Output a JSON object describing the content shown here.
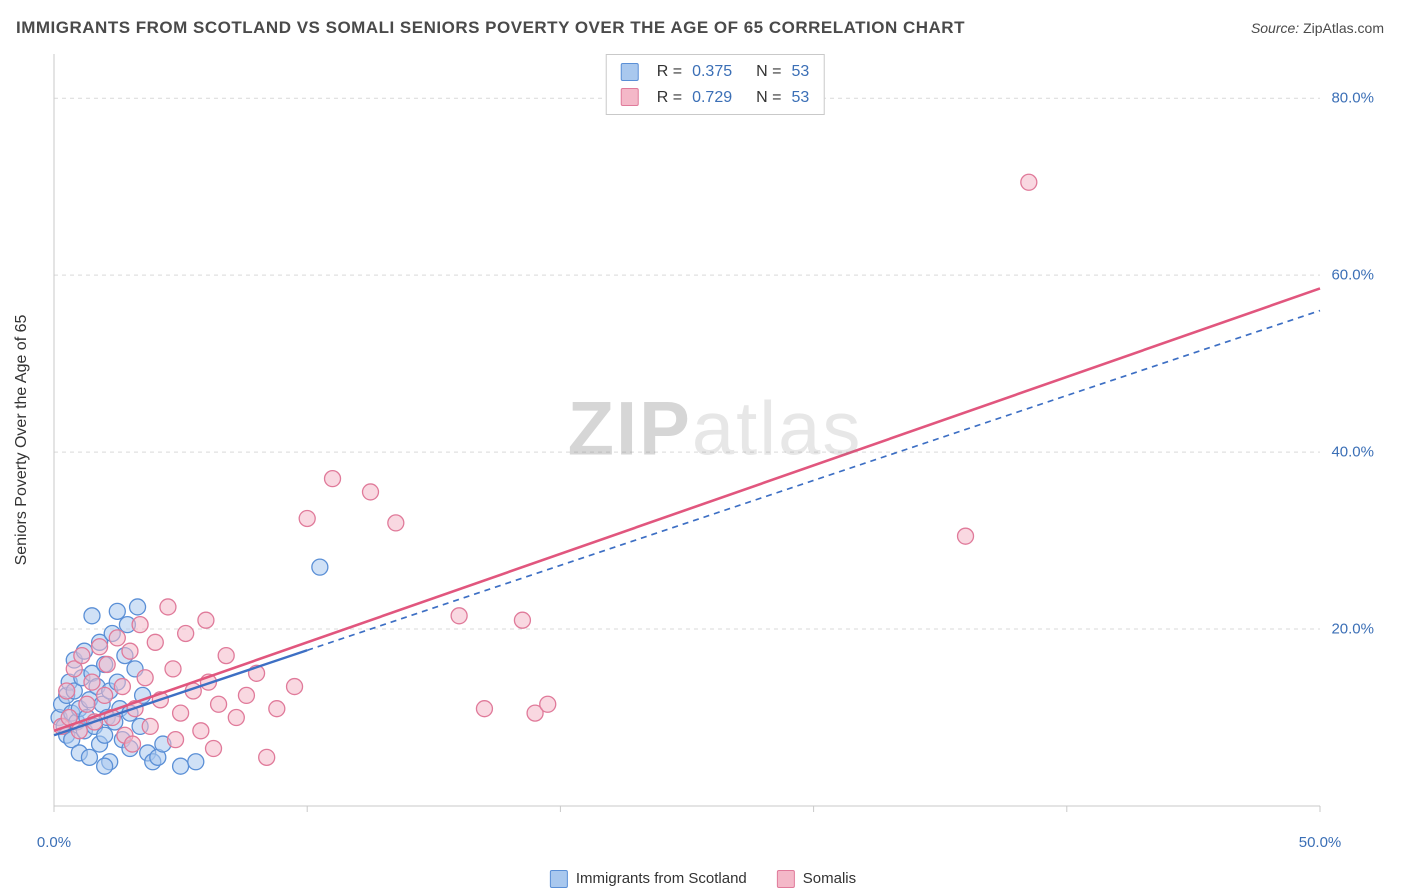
{
  "title": "IMMIGRANTS FROM SCOTLAND VS SOMALI SENIORS POVERTY OVER THE AGE OF 65 CORRELATION CHART",
  "source_label": "Source:",
  "source_value": "ZipAtlas.com",
  "ylabel": "Seniors Poverty Over the Age of 65",
  "watermark_a": "ZIP",
  "watermark_b": "atlas",
  "chart": {
    "type": "scatter",
    "background_color": "#ffffff",
    "grid_color": "#d9d9d9",
    "grid_dash": "4,4",
    "axis_color": "#c9c9c9",
    "tick_color": "#3b6fb6",
    "xlim": [
      0,
      50
    ],
    "ylim": [
      0,
      85
    ],
    "x_ticks": [
      0,
      10,
      20,
      30,
      40,
      50
    ],
    "x_tick_labels": [
      "0.0%",
      "",
      "",
      "",
      "",
      "50.0%"
    ],
    "y_ticks": [
      20,
      40,
      60,
      80
    ],
    "y_tick_labels": [
      "20.0%",
      "40.0%",
      "60.0%",
      "80.0%"
    ],
    "marker_radius": 8,
    "marker_stroke_width": 1.3,
    "series": [
      {
        "name": "Immigrants from Scotland",
        "fill": "#a9c8ee",
        "fill_opacity": 0.55,
        "stroke": "#5a8fd6",
        "line_color": "#3d6fc4",
        "line_width": 2.4,
        "line_dash_after": "6,5",
        "line_solid_until_x": 10,
        "R": "0.375",
        "N": "53",
        "trend": {
          "x1": 0,
          "y1": 8.0,
          "x2": 50,
          "y2": 56.0
        },
        "points": [
          [
            0.2,
            10.0
          ],
          [
            0.3,
            11.5
          ],
          [
            0.4,
            9.0
          ],
          [
            0.5,
            12.5
          ],
          [
            0.5,
            8.0
          ],
          [
            0.6,
            14.0
          ],
          [
            0.7,
            10.5
          ],
          [
            0.7,
            7.5
          ],
          [
            0.8,
            13.0
          ],
          [
            0.8,
            16.5
          ],
          [
            0.9,
            9.5
          ],
          [
            1.0,
            11.0
          ],
          [
            1.0,
            6.0
          ],
          [
            1.1,
            14.5
          ],
          [
            1.2,
            8.5
          ],
          [
            1.2,
            17.5
          ],
          [
            1.3,
            10.0
          ],
          [
            1.4,
            12.0
          ],
          [
            1.4,
            5.5
          ],
          [
            1.5,
            15.0
          ],
          [
            1.5,
            21.5
          ],
          [
            1.6,
            9.0
          ],
          [
            1.7,
            13.5
          ],
          [
            1.8,
            7.0
          ],
          [
            1.8,
            18.5
          ],
          [
            1.9,
            11.5
          ],
          [
            2.0,
            8.0
          ],
          [
            2.0,
            16.0
          ],
          [
            2.1,
            10.0
          ],
          [
            2.2,
            13.0
          ],
          [
            2.2,
            5.0
          ],
          [
            2.3,
            19.5
          ],
          [
            2.4,
            9.5
          ],
          [
            2.5,
            14.0
          ],
          [
            2.5,
            22.0
          ],
          [
            2.6,
            11.0
          ],
          [
            2.7,
            7.5
          ],
          [
            2.8,
            17.0
          ],
          [
            2.9,
            20.5
          ],
          [
            3.0,
            10.5
          ],
          [
            3.0,
            6.5
          ],
          [
            3.2,
            15.5
          ],
          [
            3.3,
            22.5
          ],
          [
            3.4,
            9.0
          ],
          [
            3.5,
            12.5
          ],
          [
            3.7,
            6.0
          ],
          [
            3.9,
            5.0
          ],
          [
            4.1,
            5.5
          ],
          [
            4.3,
            7.0
          ],
          [
            5.0,
            4.5
          ],
          [
            5.6,
            5.0
          ],
          [
            2.0,
            4.5
          ],
          [
            10.5,
            27.0
          ]
        ]
      },
      {
        "name": "Somalis",
        "fill": "#f4b8c8",
        "fill_opacity": 0.55,
        "stroke": "#e07a9a",
        "line_color": "#e1567e",
        "line_width": 2.6,
        "line_dash_after": "",
        "line_solid_until_x": 50,
        "R": "0.729",
        "N": "53",
        "trend": {
          "x1": 0,
          "y1": 8.5,
          "x2": 50,
          "y2": 58.5
        },
        "points": [
          [
            0.3,
            9.0
          ],
          [
            0.5,
            13.0
          ],
          [
            0.6,
            10.0
          ],
          [
            0.8,
            15.5
          ],
          [
            1.0,
            8.5
          ],
          [
            1.1,
            17.0
          ],
          [
            1.3,
            11.5
          ],
          [
            1.5,
            14.0
          ],
          [
            1.6,
            9.5
          ],
          [
            1.8,
            18.0
          ],
          [
            2.0,
            12.5
          ],
          [
            2.1,
            16.0
          ],
          [
            2.3,
            10.0
          ],
          [
            2.5,
            19.0
          ],
          [
            2.7,
            13.5
          ],
          [
            2.8,
            8.0
          ],
          [
            3.0,
            17.5
          ],
          [
            3.2,
            11.0
          ],
          [
            3.4,
            20.5
          ],
          [
            3.6,
            14.5
          ],
          [
            3.8,
            9.0
          ],
          [
            4.0,
            18.5
          ],
          [
            4.2,
            12.0
          ],
          [
            4.5,
            22.5
          ],
          [
            4.7,
            15.5
          ],
          [
            5.0,
            10.5
          ],
          [
            5.2,
            19.5
          ],
          [
            5.5,
            13.0
          ],
          [
            5.8,
            8.5
          ],
          [
            6.0,
            21.0
          ],
          [
            6.1,
            14.0
          ],
          [
            6.5,
            11.5
          ],
          [
            6.8,
            17.0
          ],
          [
            7.2,
            10.0
          ],
          [
            7.6,
            12.5
          ],
          [
            8.0,
            15.0
          ],
          [
            8.4,
            5.5
          ],
          [
            8.8,
            11.0
          ],
          [
            9.5,
            13.5
          ],
          [
            10.0,
            32.5
          ],
          [
            11.0,
            37.0
          ],
          [
            12.5,
            35.5
          ],
          [
            13.5,
            32.0
          ],
          [
            16.0,
            21.5
          ],
          [
            17.0,
            11.0
          ],
          [
            18.5,
            21.0
          ],
          [
            19.0,
            10.5
          ],
          [
            19.5,
            11.5
          ],
          [
            36.0,
            30.5
          ],
          [
            38.5,
            70.5
          ],
          [
            4.8,
            7.5
          ],
          [
            6.3,
            6.5
          ],
          [
            3.1,
            7.0
          ]
        ]
      }
    ]
  },
  "bottom_legend": [
    {
      "label": "Immigrants from Scotland",
      "fill": "#a9c8ee",
      "stroke": "#5a8fd6"
    },
    {
      "label": "Somalis",
      "fill": "#f4b8c8",
      "stroke": "#e07a9a"
    }
  ]
}
